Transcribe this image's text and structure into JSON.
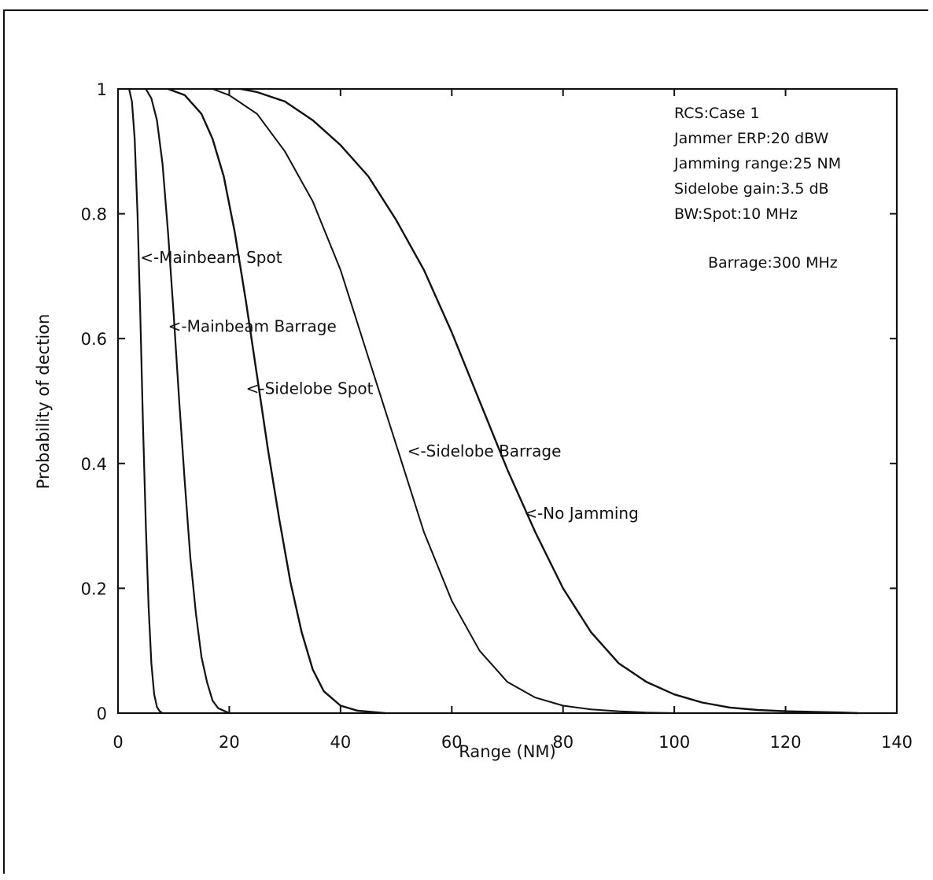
{
  "chart_data": {
    "type": "line",
    "title": "",
    "xlabel": "Range (NM)",
    "ylabel": "Probability of dection",
    "xlim": [
      0,
      140
    ],
    "ylim": [
      0,
      1
    ],
    "x_ticks": [
      "0",
      "20",
      "40",
      "60",
      "80",
      "100",
      "120",
      "140"
    ],
    "y_ticks": [
      "0",
      "0.2",
      "0.4",
      "0.6",
      "0.8",
      "1"
    ],
    "grid": false,
    "legend": "none",
    "annotations": [
      "RCS:Case 1",
      "Jammer ERP:20 dBW",
      "Jamming range:25 NM",
      "Sidelobe gain:3.5 dB",
      "BW:Spot:10 MHz",
      "Barrage:300 MHz"
    ],
    "series": [
      {
        "name": "<-Mainbeam Spot",
        "label_at": [
          4,
          0.73
        ],
        "x": [
          2,
          2.5,
          3,
          3.5,
          4,
          4.5,
          5,
          5.5,
          6,
          6.5,
          7,
          7.5,
          8
        ],
        "y": [
          1.0,
          0.98,
          0.92,
          0.8,
          0.64,
          0.46,
          0.3,
          0.17,
          0.08,
          0.03,
          0.01,
          0.003,
          0.0
        ]
      },
      {
        "name": "<-Mainbeam Barrage",
        "label_at": [
          9,
          0.62
        ],
        "x": [
          5,
          6,
          7,
          8,
          9,
          10,
          11,
          12,
          13,
          14,
          15,
          16,
          17,
          18,
          20
        ],
        "y": [
          1.0,
          0.985,
          0.95,
          0.88,
          0.77,
          0.64,
          0.5,
          0.37,
          0.25,
          0.16,
          0.09,
          0.05,
          0.02,
          0.008,
          0.0
        ]
      },
      {
        "name": "<-Sidelobe Spot",
        "label_at": [
          23,
          0.52
        ],
        "x": [
          9,
          12,
          15,
          17,
          19,
          21,
          23,
          25,
          27,
          29,
          31,
          33,
          35,
          37,
          40,
          43,
          48
        ],
        "y": [
          1.0,
          0.99,
          0.96,
          0.92,
          0.86,
          0.77,
          0.66,
          0.54,
          0.42,
          0.31,
          0.21,
          0.13,
          0.07,
          0.035,
          0.012,
          0.004,
          0.0
        ]
      },
      {
        "name": "<-Sidelobe Barrage",
        "label_at": [
          52,
          0.42
        ],
        "x": [
          17,
          20,
          25,
          30,
          35,
          40,
          45,
          50,
          55,
          60,
          65,
          70,
          75,
          80,
          85,
          90,
          95,
          100
        ],
        "y": [
          1.0,
          0.99,
          0.96,
          0.9,
          0.82,
          0.71,
          0.57,
          0.43,
          0.29,
          0.18,
          0.1,
          0.05,
          0.025,
          0.012,
          0.006,
          0.003,
          0.001,
          0.0
        ]
      },
      {
        "name": "<-No Jamming",
        "label_at": [
          73,
          0.32
        ],
        "x": [
          22,
          25,
          30,
          35,
          40,
          45,
          50,
          55,
          60,
          65,
          70,
          75,
          80,
          85,
          90,
          95,
          100,
          105,
          110,
          115,
          120,
          125,
          130,
          133
        ],
        "y": [
          1.0,
          0.995,
          0.98,
          0.95,
          0.91,
          0.86,
          0.79,
          0.71,
          0.61,
          0.5,
          0.39,
          0.29,
          0.2,
          0.13,
          0.08,
          0.05,
          0.03,
          0.017,
          0.009,
          0.005,
          0.003,
          0.002,
          0.001,
          0.0
        ]
      }
    ]
  }
}
